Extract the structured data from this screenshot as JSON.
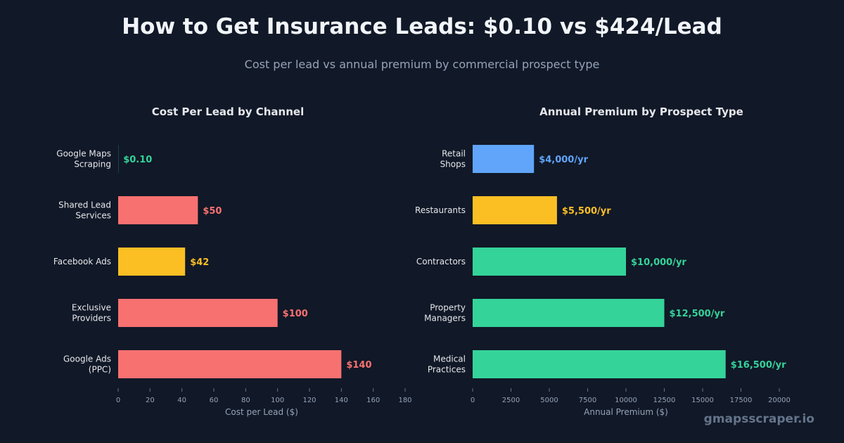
{
  "header": {
    "title": "How to Get Insurance Leads: $0.10 vs $424/Lead",
    "subtitle": "Cost per lead vs annual premium by commercial prospect type"
  },
  "watermark": "gmapsscraper.io",
  "chart_data": [
    {
      "type": "bar",
      "orientation": "horizontal",
      "title": "Cost Per Lead by Channel",
      "xlabel": "Cost per Lead ($)",
      "ylabel": "",
      "xlim": [
        0,
        180
      ],
      "xticks": [
        0,
        20,
        40,
        60,
        80,
        100,
        120,
        140,
        160,
        180
      ],
      "xtick_labels": [
        "0",
        "20",
        "40",
        "60",
        "80",
        "100",
        "120",
        "140",
        "160",
        "180"
      ],
      "categories": [
        [
          "Google Maps",
          "Scraping"
        ],
        [
          "Shared Lead",
          "Services"
        ],
        [
          "Facebook Ads"
        ],
        [
          "Exclusive",
          "Providers"
        ],
        [
          "Google Ads",
          "(PPC)"
        ]
      ],
      "values": [
        0.1,
        50,
        42,
        100,
        140
      ],
      "value_labels": [
        "$0.10",
        "$50",
        "$42",
        "$100",
        "$140"
      ],
      "colors": [
        "#34d399",
        "#f87171",
        "#fbbf24",
        "#f87171",
        "#f87171"
      ],
      "grid": false
    },
    {
      "type": "bar",
      "orientation": "horizontal",
      "title": "Annual Premium by Prospect Type",
      "xlabel": "Annual Premium ($)",
      "ylabel": "",
      "xlim": [
        0,
        20000
      ],
      "xticks": [
        0,
        2500,
        5000,
        7500,
        10000,
        12500,
        15000,
        17500,
        20000
      ],
      "xtick_labels": [
        "0",
        "2500",
        "5000",
        "7500",
        "10000",
        "12500",
        "15000",
        "17500",
        "20000"
      ],
      "categories": [
        [
          "Retail",
          "Shops"
        ],
        [
          "Restaurants"
        ],
        [
          "Contractors"
        ],
        [
          "Property",
          "Managers"
        ],
        [
          "Medical",
          "Practices"
        ]
      ],
      "values": [
        4000,
        5500,
        10000,
        12500,
        16500
      ],
      "value_labels": [
        "$4,000/yr",
        "$5,500/yr",
        "$10,000/yr",
        "$12,500/yr",
        "$16,500/yr"
      ],
      "colors": [
        "#60a5fa",
        "#fbbf24",
        "#34d399",
        "#34d399",
        "#34d399"
      ],
      "grid": false
    }
  ],
  "theme": {
    "background": "#111827",
    "text": "#e5e7eb",
    "muted": "#94a3b8",
    "axis": "#6b7280"
  }
}
